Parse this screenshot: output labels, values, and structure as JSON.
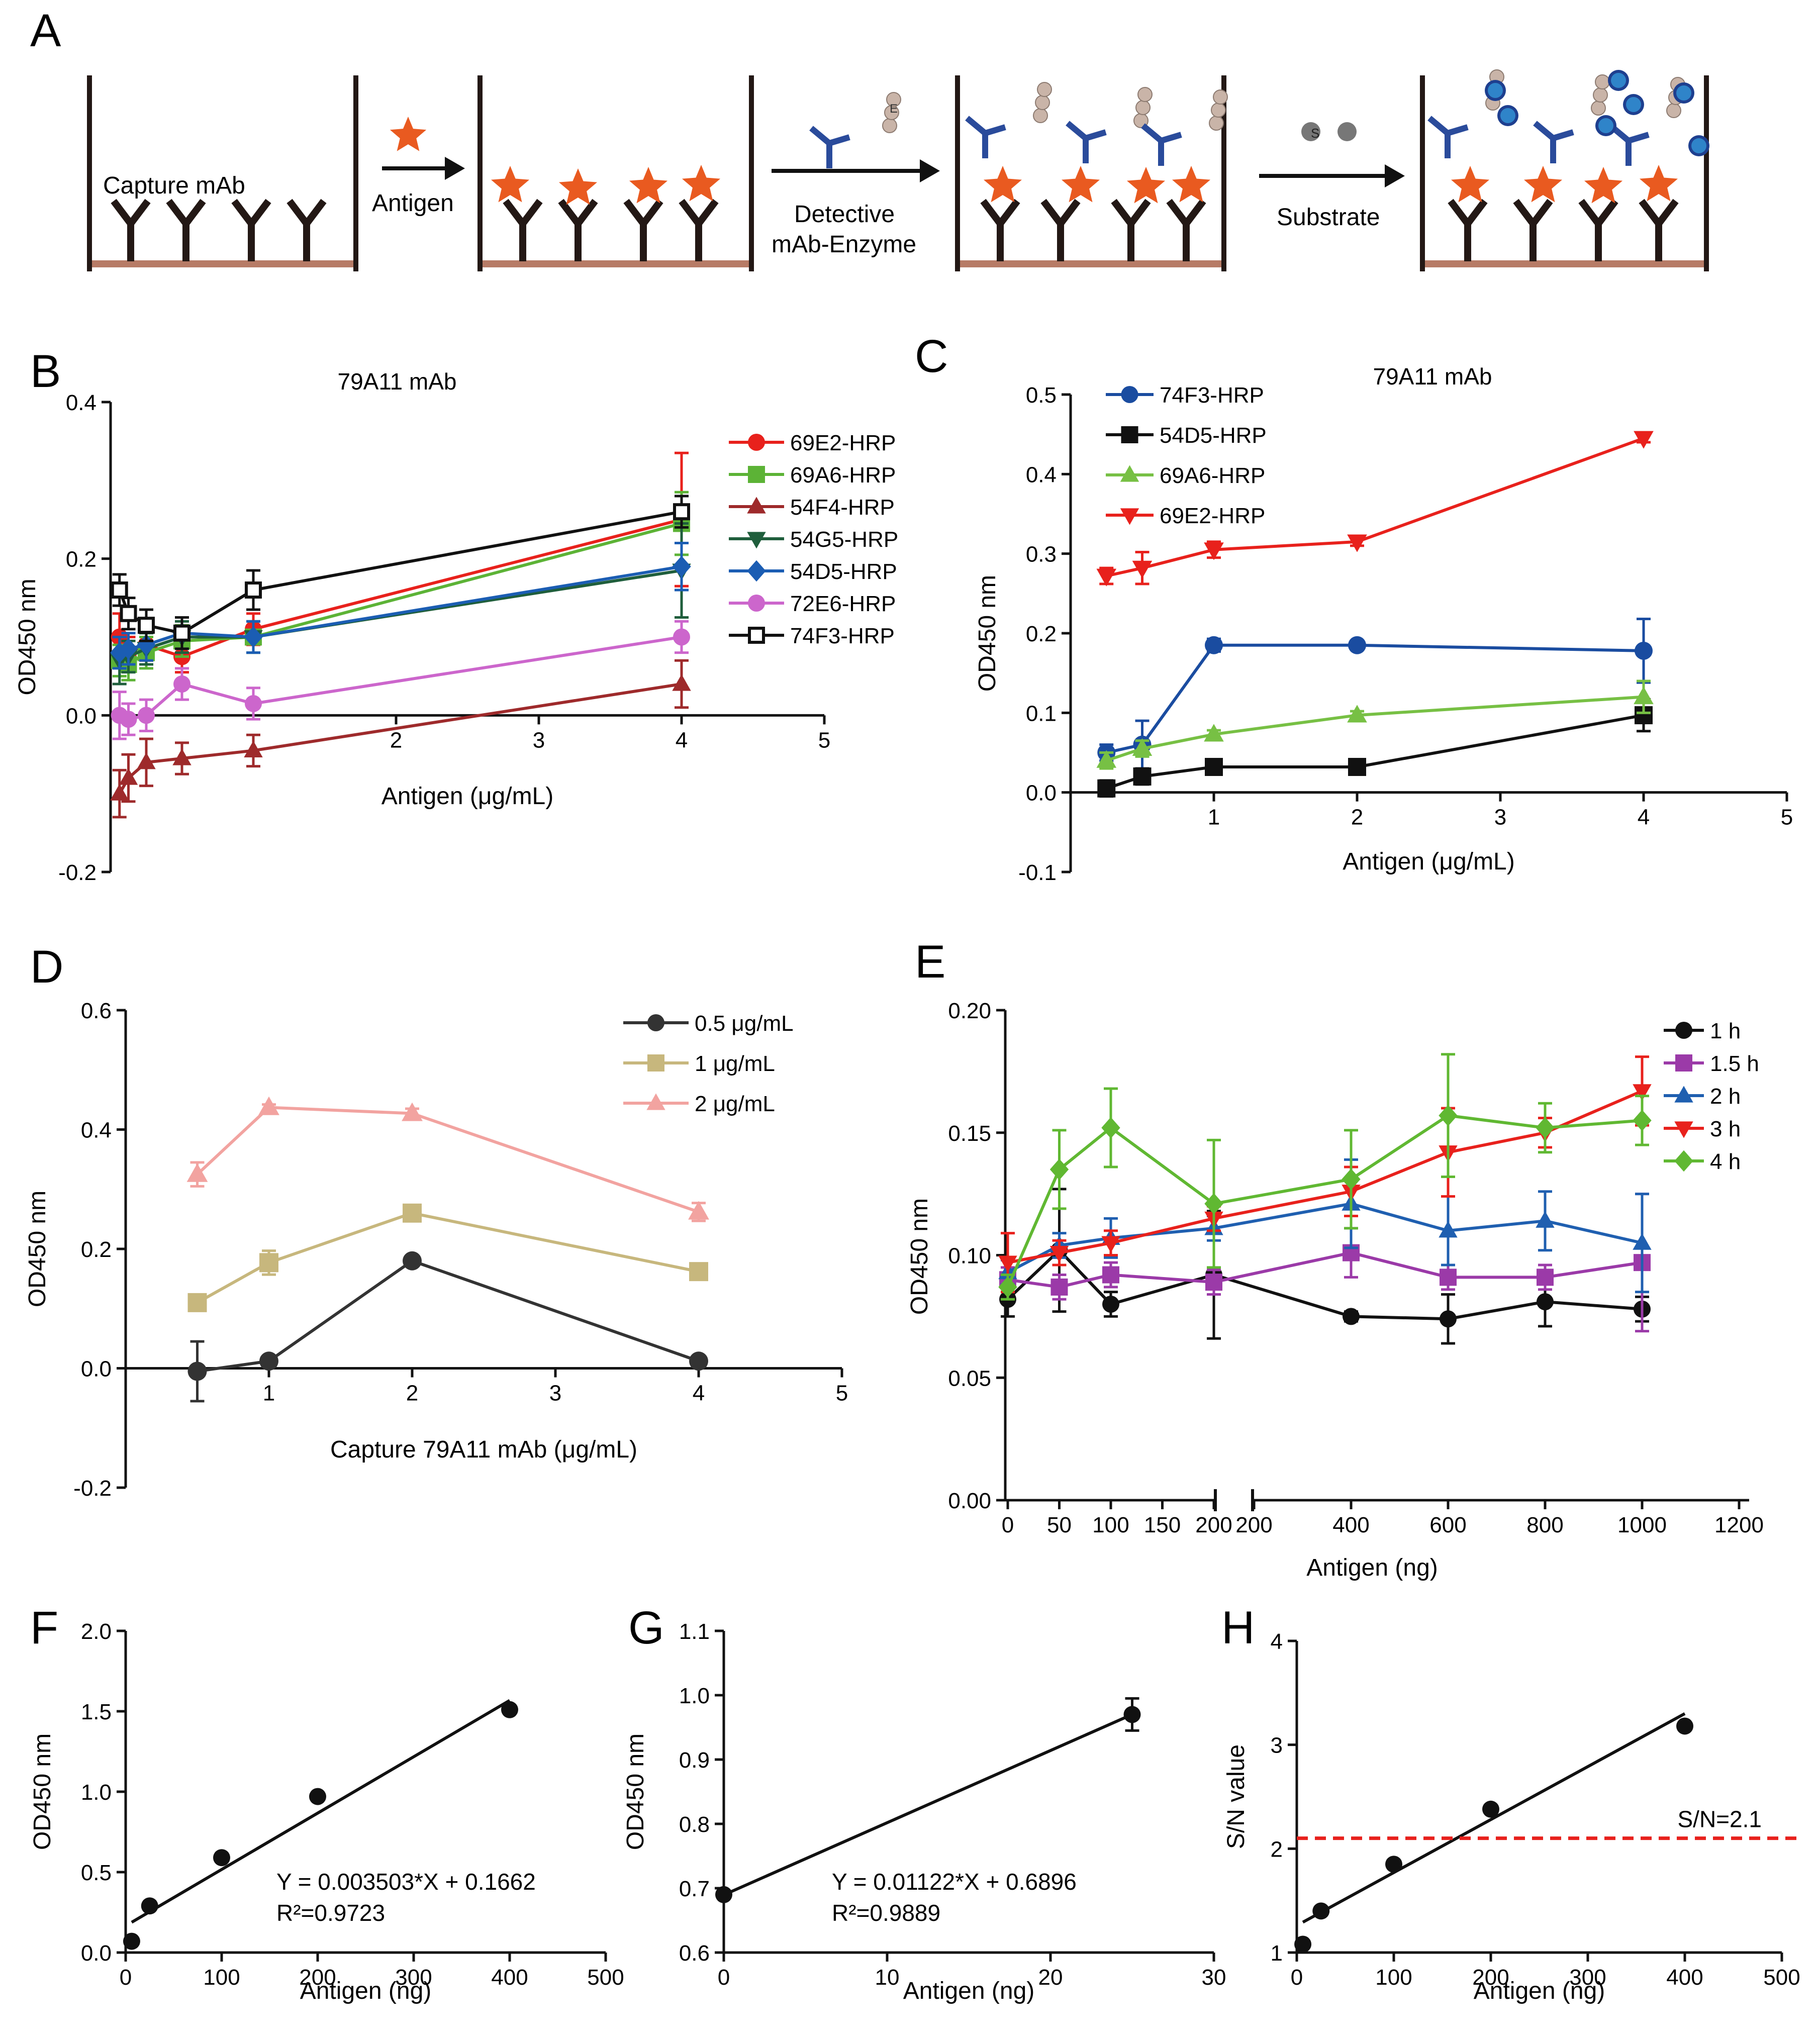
{
  "colors": {
    "axis": "#111111",
    "wall": "#231815",
    "floor": "#b77b66",
    "antigen": "#e95a20",
    "detect_mab": "#2a4b9b",
    "enzyme": "#c9b4a8",
    "substrate_gray": "#777777",
    "substrate_blue": "#2f84c9",
    "red": "#e8211c",
    "green": "#5cb336",
    "darkred": "#9e2a2b",
    "darkgreen": "#1f5e3c",
    "blue": "#1b5db3",
    "pink": "#cc66cc",
    "black": "#111111",
    "navy": "#1a4ca0",
    "lightgreen": "#77c044",
    "darkgray": "#333333",
    "tan": "#c7b77d",
    "salmon": "#f2a3a0",
    "purple": "#9b3aa8",
    "brightblue": "#1f5fb0",
    "limegreen": "#60b832",
    "dashred": "#e8211c"
  },
  "schematic": {
    "panel_letter": "A",
    "capture_label": "Capture mAb",
    "antigen_label": "Antigen",
    "detective_label_1": "Detective",
    "detective_label_2": "mAb-Enzyme",
    "substrate_label": "Substrate",
    "enzyme_glyph": "E",
    "substrate_glyph": "S"
  },
  "chart_data": [
    {
      "panel": "B",
      "type": "line",
      "title": "79A11 mAb",
      "xlabel": "Antigen (μg/mL)",
      "ylabel": "OD450 nm",
      "xlim": [
        0,
        5
      ],
      "ylim": [
        -0.2,
        0.4
      ],
      "x_ticks": [
        "2",
        "3",
        "4",
        "5"
      ],
      "x_tick_values": [
        2,
        3,
        4,
        5
      ],
      "y_ticks": [
        "0.4",
        "0.2",
        "0.0",
        "-0.2"
      ],
      "y_tick_values": [
        0.4,
        0.2,
        0.0,
        -0.2
      ],
      "series": [
        {
          "name": "69E2-HRP",
          "color": "red",
          "marker": "circle",
          "x": [
            0.0625,
            0.125,
            0.25,
            0.5,
            1,
            4
          ],
          "y": [
            0.1,
            0.08,
            0.09,
            0.075,
            0.11,
            0.25
          ],
          "err": [
            0.03,
            0.02,
            0.02,
            0.02,
            0.02,
            0.085
          ]
        },
        {
          "name": "69A6-HRP",
          "color": "green",
          "marker": "square",
          "x": [
            0.0625,
            0.125,
            0.25,
            0.5,
            1,
            4
          ],
          "y": [
            0.07,
            0.065,
            0.08,
            0.095,
            0.1,
            0.245
          ],
          "err": [
            0.02,
            0.02,
            0.02,
            0.02,
            0.02,
            0.04
          ]
        },
        {
          "name": "54F4-HRP",
          "color": "darkred",
          "marker": "triangle",
          "x": [
            0.0625,
            0.125,
            0.25,
            0.5,
            1,
            4
          ],
          "y": [
            -0.1,
            -0.08,
            -0.06,
            -0.055,
            -0.045,
            0.04
          ],
          "err": [
            0.03,
            0.03,
            0.03,
            0.02,
            0.02,
            0.03
          ]
        },
        {
          "name": "54G5-HRP",
          "color": "darkgreen",
          "marker": "tri-down",
          "x": [
            0.0625,
            0.125,
            0.25,
            0.5,
            1,
            4
          ],
          "y": [
            0.07,
            0.075,
            0.085,
            0.1,
            0.1,
            0.185
          ],
          "err": [
            0.03,
            0.02,
            0.02,
            0.02,
            0.02,
            0.06
          ]
        },
        {
          "name": "54D5-HRP",
          "color": "blue",
          "marker": "diamond",
          "x": [
            0.0625,
            0.125,
            0.25,
            0.5,
            1,
            4
          ],
          "y": [
            0.08,
            0.085,
            0.09,
            0.105,
            0.1,
            0.19
          ],
          "err": [
            0.02,
            0.02,
            0.02,
            0.02,
            0.02,
            0.03
          ]
        },
        {
          "name": "72E6-HRP",
          "color": "pink",
          "marker": "circle",
          "x": [
            0.0625,
            0.125,
            0.25,
            0.5,
            1,
            4
          ],
          "y": [
            0.0,
            -0.005,
            0.0,
            0.04,
            0.015,
            0.1
          ],
          "err": [
            0.03,
            0.02,
            0.02,
            0.02,
            0.02,
            0.02
          ]
        },
        {
          "name": "74F3-HRP",
          "color": "black",
          "marker": "open-square",
          "x": [
            0.0625,
            0.125,
            0.25,
            0.5,
            1,
            4
          ],
          "y": [
            0.16,
            0.13,
            0.115,
            0.105,
            0.16,
            0.26
          ],
          "err": [
            0.02,
            0.02,
            0.02,
            0.02,
            0.025,
            0.02
          ]
        }
      ]
    },
    {
      "panel": "C",
      "type": "line",
      "title": "79A11 mAb",
      "xlabel": "Antigen (μg/mL)",
      "ylabel": "OD450 nm",
      "xlim": [
        0,
        5
      ],
      "ylim": [
        -0.1,
        0.5
      ],
      "x_ticks": [
        "1",
        "2",
        "3",
        "4",
        "5"
      ],
      "x_tick_values": [
        1,
        2,
        3,
        4,
        5
      ],
      "y_ticks": [
        "0.5",
        "0.4",
        "0.3",
        "0.2",
        "0.1",
        "0.0",
        "-0.1"
      ],
      "y_tick_values": [
        0.5,
        0.4,
        0.3,
        0.2,
        0.1,
        0.0,
        -0.1
      ],
      "series": [
        {
          "name": "74F3-HRP",
          "color": "navy",
          "marker": "circle",
          "x": [
            0.25,
            0.5,
            1,
            2,
            4
          ],
          "y": [
            0.05,
            0.06,
            0.185,
            0.185,
            0.178
          ],
          "err": [
            0.01,
            0.03,
            0.008,
            0.005,
            0.04
          ]
        },
        {
          "name": "54D5-HRP",
          "color": "black",
          "marker": "square",
          "x": [
            0.25,
            0.5,
            1,
            2,
            4
          ],
          "y": [
            0.005,
            0.02,
            0.032,
            0.032,
            0.097
          ],
          "err": [
            0.01,
            0.01,
            0.005,
            0.005,
            0.02
          ]
        },
        {
          "name": "69A6-HRP",
          "color": "lightgreen",
          "marker": "triangle",
          "x": [
            0.25,
            0.5,
            1,
            2,
            4
          ],
          "y": [
            0.04,
            0.055,
            0.073,
            0.097,
            0.12
          ],
          "err": [
            0.01,
            0.01,
            0.005,
            0.005,
            0.02
          ]
        },
        {
          "name": "69E2-HRP",
          "color": "red",
          "marker": "tri-down",
          "x": [
            0.25,
            0.5,
            1,
            2,
            4
          ],
          "y": [
            0.272,
            0.282,
            0.305,
            0.315,
            0.445
          ],
          "err": [
            0.01,
            0.02,
            0.01,
            0.005,
            0.005
          ]
        }
      ]
    },
    {
      "panel": "D",
      "type": "line",
      "title": "",
      "xlabel": "Capture 79A11 mAb (μg/mL)",
      "ylabel": "OD450 nm",
      "xlim": [
        0,
        5
      ],
      "ylim": [
        -0.2,
        0.6
      ],
      "x_ticks": [
        "1",
        "2",
        "3",
        "4",
        "5"
      ],
      "x_tick_values": [
        1,
        2,
        3,
        4,
        5
      ],
      "y_ticks": [
        "0.6",
        "0.4",
        "0.2",
        "0.0",
        "-0.2"
      ],
      "y_tick_values": [
        0.6,
        0.4,
        0.2,
        0.0,
        -0.2
      ],
      "series": [
        {
          "name": "0.5 μg/mL",
          "color": "darkgray",
          "marker": "circle",
          "x": [
            0.5,
            1,
            2,
            4
          ],
          "y": [
            -0.005,
            0.012,
            0.18,
            0.012
          ],
          "err": [
            0.05,
            0.005,
            0.005,
            0.005
          ]
        },
        {
          "name": "1 μg/mL",
          "color": "tan",
          "marker": "square",
          "x": [
            0.5,
            1,
            2,
            4
          ],
          "y": [
            0.11,
            0.177,
            0.26,
            0.162
          ],
          "err": [
            0.01,
            0.02,
            0.01,
            0.01
          ]
        },
        {
          "name": "2 μg/mL",
          "color": "salmon",
          "marker": "triangle",
          "x": [
            0.5,
            1,
            2,
            4
          ],
          "y": [
            0.325,
            0.437,
            0.427,
            0.262
          ],
          "err": [
            0.02,
            0.005,
            0.008,
            0.015
          ]
        }
      ]
    },
    {
      "panel": "E",
      "type": "line",
      "title": "",
      "xlabel": "Antigen (ng)",
      "ylabel": "OD450 nm",
      "ylim": [
        0.0,
        0.2
      ],
      "y_ticks": [
        "0.20",
        "0.15",
        "0.10",
        "0.05",
        "0.00"
      ],
      "y_tick_values": [
        0.2,
        0.15,
        0.1,
        0.05,
        0.0
      ],
      "x_ticks_left": [
        "0",
        "50",
        "100",
        "150",
        "200"
      ],
      "x_tick_values_left": [
        0,
        50,
        100,
        150,
        200
      ],
      "x_ticks_right": [
        "200",
        "400",
        "600",
        "800",
        "1000",
        "1200"
      ],
      "x_tick_values_right": [
        200,
        400,
        600,
        800,
        1000,
        1200
      ],
      "x": [
        0,
        50,
        100,
        200,
        400,
        600,
        800,
        1000
      ],
      "series": [
        {
          "name": "1 h",
          "color": "black",
          "marker": "circle",
          "y": [
            0.082,
            0.102,
            0.08,
            0.092,
            0.075,
            0.074,
            0.081,
            0.078
          ],
          "err": [
            0.007,
            0.025,
            0.005,
            0.026,
            0.002,
            0.01,
            0.01,
            0.005
          ]
        },
        {
          "name": "1.5 h",
          "color": "purple",
          "marker": "square",
          "y": [
            0.09,
            0.087,
            0.092,
            0.089,
            0.101,
            0.091,
            0.091,
            0.097
          ],
          "err": [
            0.005,
            0.005,
            0.005,
            0.005,
            0.01,
            0.005,
            0.005,
            0.028
          ]
        },
        {
          "name": "2 h",
          "color": "brightblue",
          "marker": "triangle",
          "y": [
            0.093,
            0.104,
            0.107,
            0.111,
            0.121,
            0.11,
            0.114,
            0.105
          ],
          "err": [
            0.005,
            0.005,
            0.008,
            0.005,
            0.018,
            0.014,
            0.012,
            0.02
          ]
        },
        {
          "name": "3 h",
          "color": "red",
          "marker": "tri-down",
          "y": [
            0.097,
            0.101,
            0.105,
            0.115,
            0.126,
            0.142,
            0.15,
            0.167
          ],
          "err": [
            0.012,
            0.005,
            0.005,
            0.005,
            0.01,
            0.018,
            0.006,
            0.014
          ]
        },
        {
          "name": "4 h",
          "color": "limegreen",
          "marker": "diamond",
          "y": [
            0.087,
            0.135,
            0.152,
            0.121,
            0.131,
            0.157,
            0.152,
            0.155
          ],
          "err": [
            0.005,
            0.016,
            0.016,
            0.026,
            0.02,
            0.025,
            0.01,
            0.01
          ]
        }
      ]
    },
    {
      "panel": "F",
      "type": "scatter",
      "xlabel": "Antigen (ng)",
      "ylabel": "OD450 nm",
      "xlim": [
        0,
        500
      ],
      "ylim": [
        0.0,
        2.0
      ],
      "x_ticks": [
        "0",
        "100",
        "200",
        "300",
        "400",
        "500"
      ],
      "x_tick_values": [
        0,
        100,
        200,
        300,
        400,
        500
      ],
      "y_ticks": [
        "2.0",
        "1.5",
        "1.0",
        "0.5",
        "0.0"
      ],
      "y_tick_values": [
        2.0,
        1.5,
        1.0,
        0.5,
        0.0
      ],
      "points": {
        "x": [
          6.25,
          25,
          100,
          200,
          400
        ],
        "y": [
          0.07,
          0.29,
          0.59,
          0.97,
          1.51
        ]
      },
      "fit": {
        "slope": 0.003503,
        "intercept": 0.1662,
        "x_range": [
          6.25,
          400
        ]
      },
      "equation": "Y = 0.003503*X + 0.1662",
      "r2": "R²=0.9723"
    },
    {
      "panel": "G",
      "type": "scatter",
      "xlabel": "Antigen (ng)",
      "ylabel": "OD450 nm",
      "xlim": [
        0,
        30
      ],
      "ylim": [
        0.6,
        1.1
      ],
      "x_ticks": [
        "0",
        "10",
        "20",
        "30"
      ],
      "x_tick_values": [
        0,
        10,
        20,
        30
      ],
      "y_ticks": [
        "1.1",
        "1.0",
        "0.9",
        "0.8",
        "0.7",
        "0.6"
      ],
      "y_tick_values": [
        1.1,
        1.0,
        0.9,
        0.8,
        0.7,
        0.6
      ],
      "points": {
        "x": [
          0,
          25
        ],
        "y": [
          0.69,
          0.97
        ],
        "err": [
          0.0,
          0.025
        ]
      },
      "fit": {
        "slope": 0.01122,
        "intercept": 0.6896,
        "x_range": [
          0,
          25
        ]
      },
      "equation": "Y = 0.01122*X + 0.6896",
      "r2": "R²=0.9889"
    },
    {
      "panel": "H",
      "type": "scatter",
      "xlabel": "Antigen (ng)",
      "ylabel": "S/N value",
      "xlim": [
        0,
        500
      ],
      "ylim": [
        1,
        4
      ],
      "x_ticks": [
        "0",
        "100",
        "200",
        "300",
        "400",
        "500"
      ],
      "x_tick_values": [
        0,
        100,
        200,
        300,
        400,
        500
      ],
      "y_ticks": [
        "4",
        "3",
        "2",
        "1"
      ],
      "y_tick_values": [
        4,
        3,
        2,
        1
      ],
      "points": {
        "x": [
          6.25,
          25,
          100,
          200,
          400
        ],
        "y": [
          1.08,
          1.4,
          1.85,
          2.38,
          3.18
        ]
      },
      "fit": {
        "slope": 0.0051,
        "intercept": 1.26,
        "x_range": [
          6.25,
          400
        ]
      },
      "threshold": 2.1,
      "threshold_label": "S/N=2.1"
    }
  ]
}
